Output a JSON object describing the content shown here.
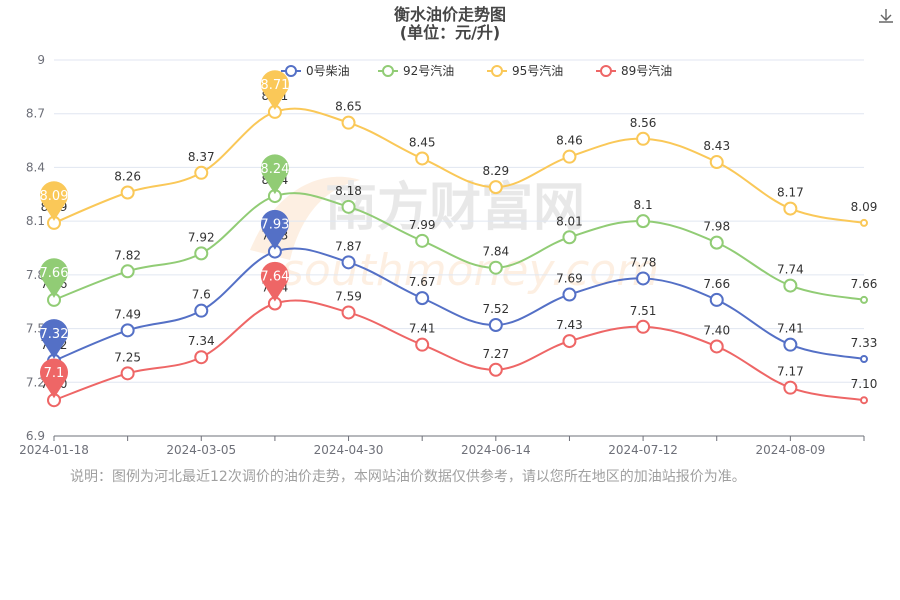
{
  "chart_data": {
    "type": "line",
    "title": "衡水油价走势图",
    "subtitle": "(单位：元/升)",
    "categories": [
      "2024-01-18",
      "",
      "2024-03-05",
      "",
      "2024-04-30",
      "",
      "2024-06-14",
      "",
      "2024-07-12",
      "",
      "2024-08-09",
      ""
    ],
    "ylim": [
      6.9,
      9
    ],
    "yticks": [
      6.9,
      7.2,
      7.5,
      7.8,
      8.1,
      8.4,
      8.7,
      9
    ],
    "ytick_labels": [
      "6.9",
      "7.2",
      "7.5",
      "7.8",
      "8.1",
      "8.4",
      "8.7",
      "9"
    ],
    "grid": true,
    "legend_position": "top",
    "series": [
      {
        "name": "0号柴油",
        "color": "#5470c6",
        "values": [
          7.32,
          7.49,
          7.6,
          7.93,
          7.87,
          7.67,
          7.52,
          7.69,
          7.78,
          7.66,
          7.41,
          7.33
        ],
        "labels": [
          "7.32",
          "7.49",
          "7.6",
          "7.93",
          "7.87",
          "7.67",
          "7.52",
          "7.69",
          "7.78",
          "7.66",
          "7.41",
          "7.33"
        ],
        "max": "7.93",
        "min": "7.32"
      },
      {
        "name": "92号汽油",
        "color": "#91cc75",
        "values": [
          7.66,
          7.82,
          7.92,
          8.24,
          8.18,
          7.99,
          7.84,
          8.01,
          8.1,
          7.98,
          7.74,
          7.66
        ],
        "labels": [
          "7.66",
          "7.82",
          "7.92",
          "8.24",
          "8.18",
          "7.99",
          "7.84",
          "8.01",
          "8.1",
          "7.98",
          "7.74",
          "7.66"
        ],
        "max": "8.24",
        "min": "7.66"
      },
      {
        "name": "95号汽油",
        "color": "#fac858",
        "values": [
          8.09,
          8.26,
          8.37,
          8.71,
          8.65,
          8.45,
          8.29,
          8.46,
          8.56,
          8.43,
          8.17,
          8.09
        ],
        "labels": [
          "8.09",
          "8.26",
          "8.37",
          "8.71",
          "8.65",
          "8.45",
          "8.29",
          "8.46",
          "8.56",
          "8.43",
          "8.17",
          "8.09"
        ],
        "max": "8.71",
        "min": "8.09"
      },
      {
        "name": "89号汽油",
        "color": "#ee6666",
        "values": [
          7.1,
          7.25,
          7.34,
          7.64,
          7.59,
          7.41,
          7.27,
          7.43,
          7.51,
          7.4,
          7.17,
          7.1
        ],
        "labels": [
          "7.10",
          "7.25",
          "7.34",
          "7.64",
          "7.59",
          "7.41",
          "7.27",
          "7.43",
          "7.51",
          "7.40",
          "7.17",
          "7.10"
        ],
        "max": "7.64",
        "min": "7.1"
      }
    ],
    "watermark": "南方财富网 southmoney.com"
  },
  "note": "说明：图例为河北最近12次调价的油价走势，本网站油价数据仅供参考，请以您所在地区的加油站报价为准。",
  "icons": {
    "download": "download-icon"
  }
}
